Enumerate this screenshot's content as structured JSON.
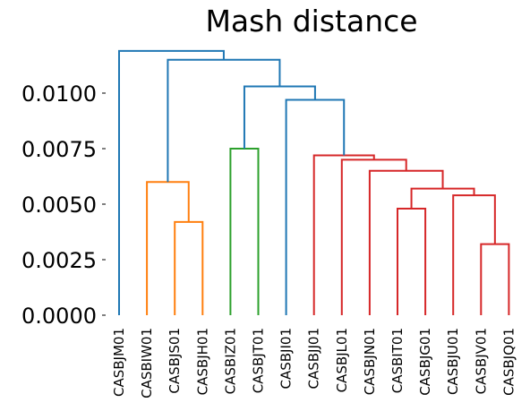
{
  "chart_data": {
    "type": "dendrogram",
    "title": "Mash distance",
    "xlabel": "",
    "ylabel": "",
    "ylim": [
      0,
      0.012
    ],
    "yticks": [
      0.0,
      0.0025,
      0.005,
      0.0075,
      0.01
    ],
    "ytick_labels": [
      "0.0000",
      "0.0025",
      "0.0050",
      "0.0075",
      "0.0100"
    ],
    "grid": false,
    "leaves": [
      "CASBJM01",
      "CASBIW01",
      "CASBJS01",
      "CASBJH01",
      "CASBIZ01",
      "CASBJT01",
      "CASBJI01",
      "CASBJJ01",
      "CASBJL01",
      "CASBJN01",
      "CASBIT01",
      "CASBJG01",
      "CASBJU01",
      "CASBJV01",
      "CASBJQ01"
    ],
    "colors": {
      "above_threshold": "#1f77b4",
      "orange": "#ff7f0e",
      "green": "#2ca02c",
      "red": "#d62728"
    },
    "merges": [
      {
        "left": "CASBJV01",
        "right": "CASBJQ01",
        "height": 0.0032,
        "color": "red"
      },
      {
        "left": "CASBJU01",
        "right": "m0",
        "height": 0.0054,
        "color": "red"
      },
      {
        "left": "CASBIT01",
        "right": "CASBJG01",
        "height": 0.0048,
        "color": "red"
      },
      {
        "left": "m2",
        "right": "m1",
        "height": 0.0057,
        "color": "red"
      },
      {
        "left": "CASBJN01",
        "right": "m3",
        "height": 0.0065,
        "color": "red"
      },
      {
        "left": "CASBJL01",
        "right": "m4",
        "height": 0.007,
        "color": "red"
      },
      {
        "left": "CASBJJ01",
        "right": "m5",
        "height": 0.0072,
        "color": "red"
      },
      {
        "left": "CASBJI01",
        "right": "m6",
        "height": 0.0097,
        "color": "above_threshold"
      },
      {
        "left": "CASBIZ01",
        "right": "CASBJT01",
        "height": 0.0075,
        "color": "green"
      },
      {
        "left": "m8",
        "right": "m7",
        "height": 0.0103,
        "color": "above_threshold"
      },
      {
        "left": "CASBJS01",
        "right": "CASBJH01",
        "height": 0.0042,
        "color": "orange"
      },
      {
        "left": "CASBIW01",
        "right": "m10",
        "height": 0.006,
        "color": "orange"
      },
      {
        "left": "m11",
        "right": "m9",
        "height": 0.0115,
        "color": "above_threshold"
      },
      {
        "left": "CASBJM01",
        "right": "m12",
        "height": 0.0119,
        "color": "above_threshold"
      }
    ]
  }
}
